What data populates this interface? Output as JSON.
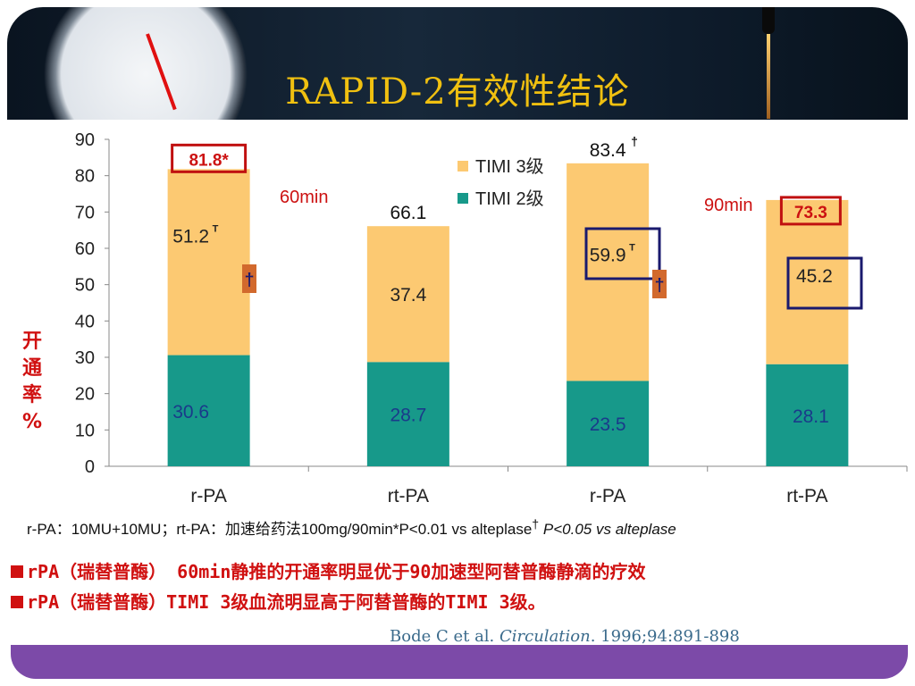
{
  "title": "RAPID-2有效性结论",
  "y_axis_label": [
    "开",
    "通",
    "率",
    "%"
  ],
  "colors": {
    "timi3": "#fcc972",
    "timi2": "#17998a",
    "accent_red": "#cc1111",
    "box_navy": "#1a1a6e",
    "dagger_box": "#d2692d"
  },
  "chart_data": {
    "type": "bar",
    "stacked": true,
    "categories": [
      "r-PA",
      "rt-PA",
      "r-PA",
      "rt-PA"
    ],
    "series": [
      {
        "name": "TIMI 2级",
        "values": [
          30.6,
          28.7,
          23.5,
          28.1
        ]
      },
      {
        "name": "TIMI 3级",
        "values": [
          51.2,
          37.4,
          59.9,
          45.2
        ]
      }
    ],
    "totals": [
      "81.8*",
      "66.1",
      "83.4",
      "73.3"
    ],
    "timi3_labels": [
      "51.2",
      "37.4",
      "59.9",
      "45.2"
    ],
    "timi3_label_superscripts": [
      "T",
      "",
      "T",
      ""
    ],
    "total_superscripts": [
      "",
      "",
      "†",
      ""
    ],
    "ylim": [
      0,
      90
    ],
    "yticks": [
      0,
      10,
      20,
      30,
      40,
      50,
      60,
      70,
      80,
      90
    ],
    "grid": false,
    "legend_placement": "top-center",
    "time_labels": [
      "60min",
      "90min"
    ],
    "dagger_markers": [
      "†",
      "†"
    ]
  },
  "footnote": {
    "main": "r-PA：10MU+10MU；rt-PA：加速给药法100mg/90min*P<0.01 vs alteplase",
    "dagger": "†",
    "italic": " P<0.05 vs alteplase"
  },
  "bullets": [
    "rPA（瑞替普酶） 60min静推的开通率明显优于90加速型阿替普酶静滴的疗效",
    "rPA（瑞替普酶）TIMI 3级血流明显高于阿替普酶的TIMI 3级。"
  ],
  "citation": {
    "pre": "Bode C et al. ",
    "journal": "Circulation",
    "post": ". 1996;94:891-898"
  }
}
